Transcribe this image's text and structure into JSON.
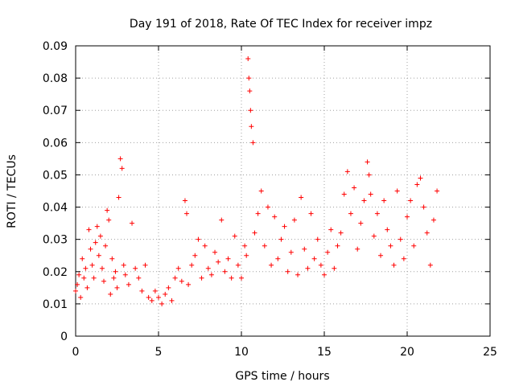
{
  "chart_data": {
    "type": "scatter",
    "title": "Day 191 of 2018, Rate Of TEC Index for receiver impz",
    "xlabel": "GPS time / hours",
    "ylabel": "ROTI / TECUs",
    "xlim": [
      0,
      25
    ],
    "ylim": [
      0,
      0.09
    ],
    "xticks": [
      0,
      5,
      10,
      15,
      20,
      25
    ],
    "xtick_labels": [
      "0",
      "5",
      "10",
      "15",
      "20",
      "25"
    ],
    "yticks": [
      0,
      0.01,
      0.02,
      0.03,
      0.04,
      0.05,
      0.06,
      0.07,
      0.08,
      0.09
    ],
    "ytick_labels": [
      "0",
      "0.01",
      "0.02",
      "0.03",
      "0.04",
      "0.05",
      "0.06",
      "0.07",
      "0.08",
      "0.09"
    ],
    "grid": true,
    "marker": "+",
    "color": "#ff0000",
    "series": [
      {
        "name": "ROTI",
        "x": [
          0.0,
          0.1,
          0.2,
          0.3,
          0.4,
          0.5,
          0.6,
          0.7,
          0.8,
          0.9,
          1.0,
          1.1,
          1.2,
          1.3,
          1.4,
          1.5,
          1.6,
          1.7,
          1.8,
          1.9,
          2.0,
          2.1,
          2.2,
          2.3,
          2.4,
          2.5,
          2.6,
          2.7,
          2.8,
          2.9,
          3.0,
          3.2,
          3.4,
          3.6,
          3.8,
          4.0,
          4.2,
          4.4,
          4.6,
          4.8,
          5.0,
          5.2,
          5.4,
          5.6,
          5.8,
          6.0,
          6.2,
          6.4,
          6.6,
          6.7,
          6.8,
          7.0,
          7.2,
          7.4,
          7.6,
          7.8,
          8.0,
          8.2,
          8.4,
          8.6,
          8.8,
          9.0,
          9.2,
          9.4,
          9.6,
          9.8,
          10.0,
          10.2,
          10.3,
          10.4,
          10.45,
          10.5,
          10.55,
          10.6,
          10.7,
          10.8,
          11.0,
          11.2,
          11.4,
          11.6,
          11.8,
          12.0,
          12.2,
          12.4,
          12.6,
          12.8,
          13.0,
          13.2,
          13.4,
          13.6,
          13.8,
          14.0,
          14.2,
          14.4,
          14.6,
          14.8,
          15.0,
          15.2,
          15.4,
          15.6,
          15.8,
          16.0,
          16.2,
          16.4,
          16.6,
          16.8,
          17.0,
          17.2,
          17.4,
          17.6,
          17.7,
          17.8,
          18.0,
          18.2,
          18.4,
          18.6,
          18.8,
          19.0,
          19.2,
          19.4,
          19.6,
          19.8,
          20.0,
          20.2,
          20.4,
          20.6,
          20.8,
          21.0,
          21.2,
          21.4,
          21.6,
          21.8
        ],
        "y": [
          0.014,
          0.016,
          0.019,
          0.012,
          0.024,
          0.018,
          0.021,
          0.015,
          0.033,
          0.027,
          0.022,
          0.018,
          0.029,
          0.034,
          0.025,
          0.031,
          0.021,
          0.017,
          0.028,
          0.039,
          0.036,
          0.013,
          0.024,
          0.018,
          0.02,
          0.015,
          0.043,
          0.055,
          0.052,
          0.022,
          0.019,
          0.016,
          0.035,
          0.021,
          0.018,
          0.014,
          0.022,
          0.012,
          0.011,
          0.014,
          0.012,
          0.01,
          0.013,
          0.015,
          0.011,
          0.018,
          0.021,
          0.017,
          0.042,
          0.038,
          0.016,
          0.022,
          0.025,
          0.03,
          0.018,
          0.028,
          0.021,
          0.019,
          0.026,
          0.023,
          0.036,
          0.02,
          0.024,
          0.018,
          0.031,
          0.022,
          0.018,
          0.028,
          0.025,
          0.086,
          0.08,
          0.076,
          0.07,
          0.065,
          0.06,
          0.032,
          0.038,
          0.045,
          0.028,
          0.04,
          0.022,
          0.037,
          0.024,
          0.03,
          0.034,
          0.02,
          0.026,
          0.036,
          0.019,
          0.043,
          0.027,
          0.021,
          0.038,
          0.024,
          0.03,
          0.022,
          0.019,
          0.026,
          0.033,
          0.021,
          0.028,
          0.032,
          0.044,
          0.051,
          0.038,
          0.046,
          0.027,
          0.035,
          0.042,
          0.054,
          0.05,
          0.044,
          0.031,
          0.038,
          0.025,
          0.042,
          0.033,
          0.028,
          0.022,
          0.045,
          0.03,
          0.024,
          0.037,
          0.042,
          0.028,
          0.047,
          0.049,
          0.04,
          0.032,
          0.022,
          0.036,
          0.045
        ]
      }
    ]
  }
}
